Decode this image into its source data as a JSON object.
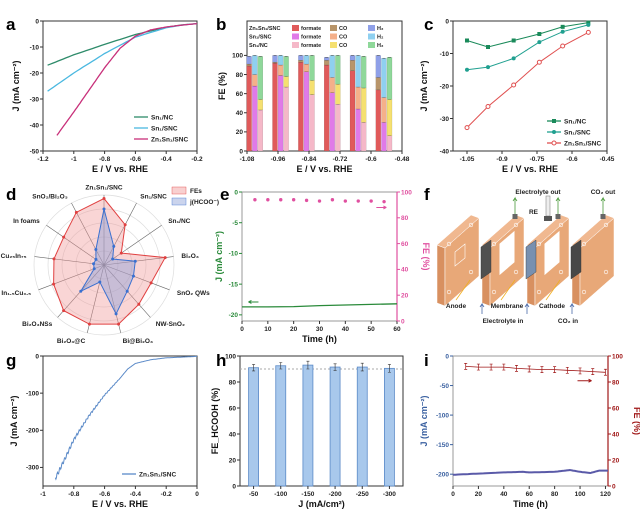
{
  "panel_labels": [
    "a",
    "b",
    "c",
    "d",
    "e",
    "f",
    "g",
    "h",
    "i"
  ],
  "chart_data": [
    {
      "id": "a",
      "type": "line",
      "xlabel": "E / V vs. RHE",
      "ylabel": "J (mA cm⁻²)",
      "xlim": [
        -1.2,
        -0.2
      ],
      "ylim": [
        -50,
        0
      ],
      "xticks": [
        -1.2,
        -1.0,
        -0.8,
        -0.6,
        -0.4,
        -0.2
      ],
      "yticks": [
        -50,
        -40,
        -30,
        -20,
        -10,
        0
      ],
      "legend": "bottom-right",
      "series": [
        {
          "name": "Sn₁/NC",
          "color": "#2e8b6a",
          "x": [
            -1.17,
            -1.0,
            -0.8,
            -0.6,
            -0.4,
            -0.3,
            -0.2
          ],
          "y": [
            -17,
            -13,
            -9,
            -5.2,
            -2.4,
            -1.5,
            -1.0
          ]
        },
        {
          "name": "Sn₁/SNC",
          "color": "#4ab8e0",
          "x": [
            -1.17,
            -1.0,
            -0.8,
            -0.6,
            -0.4,
            -0.3,
            -0.2
          ],
          "y": [
            -27,
            -20,
            -12.5,
            -6.2,
            -2.6,
            -1.6,
            -1.0
          ]
        },
        {
          "name": "Zn₁Sn₁/SNC",
          "color": "#c8307a",
          "x": [
            -1.11,
            -1.0,
            -0.9,
            -0.8,
            -0.7,
            -0.6,
            -0.5,
            -0.4,
            -0.3,
            -0.2
          ],
          "y": [
            -44,
            -35,
            -26.5,
            -18,
            -10.5,
            -5.8,
            -3.4,
            -2.3,
            -1.6,
            -1.0
          ]
        }
      ]
    },
    {
      "id": "b",
      "type": "bar",
      "xlabel": "E / V vs. RHE",
      "ylabel": "FE (%)",
      "xlim": [
        -1.08,
        -0.48
      ],
      "ylim": [
        0,
        136
      ],
      "xticks": [
        -1.08,
        -0.96,
        -0.84,
        -0.72,
        -0.6,
        -0.48
      ],
      "yticks": [
        0,
        20,
        40,
        60,
        80,
        100
      ],
      "potentials": [
        -1.05,
        -0.95,
        -0.85,
        -0.75,
        -0.65,
        -0.55
      ],
      "legend": "top",
      "samples": [
        {
          "name": "Zn₁Sn₁/SNC",
          "colors": {
            "formate": "#e05a5a",
            "CO": "#b8956a",
            "H₂": "#8fa0e8"
          },
          "formate": [
            89,
            92,
            93,
            90,
            84,
            64
          ],
          "CO": [
            2,
            1,
            2,
            5,
            11,
            13
          ],
          "H₂": [
            8,
            7,
            5,
            3,
            5,
            23
          ]
        },
        {
          "name": "Sn₁/SNC",
          "colors": {
            "formate": "#e07ae8",
            "CO": "#f5b08a",
            "H₂": "#8fd0f0"
          },
          "formate": [
            68,
            79,
            83,
            61,
            44,
            30
          ],
          "CO": [
            12,
            11,
            8,
            16,
            23,
            26
          ],
          "H₂": [
            20,
            10,
            9,
            23,
            33,
            41
          ]
        },
        {
          "name": "Sn₁/NC",
          "colors": {
            "formate": "#f5b8c8",
            "CO": "#f5e070",
            "H₂": "#8fd89a"
          },
          "formate": [
            43,
            67,
            59,
            49,
            30,
            16
          ],
          "CO": [
            11,
            11,
            15,
            21,
            36,
            38
          ],
          "H₂": [
            45,
            21,
            26,
            30,
            33,
            44
          ]
        }
      ],
      "product_labels": [
        "formate",
        "CO",
        "H₂"
      ]
    },
    {
      "id": "c",
      "type": "line",
      "xlabel": "E / V vs. RHE",
      "ylabel": "J (mA cm⁻²)",
      "xlim": [
        -1.11,
        -0.45
      ],
      "ylim": [
        -40,
        0
      ],
      "xticks": [
        -1.05,
        -0.9,
        -0.75,
        -0.6,
        -0.45
      ],
      "yticks": [
        -40,
        -30,
        -20,
        -10,
        0
      ],
      "legend": "bottom-right",
      "series": [
        {
          "name": "Sn₁/NC",
          "color": "#1a8a5a",
          "marker": "square",
          "x": [
            -1.05,
            -0.96,
            -0.85,
            -0.74,
            -0.64,
            -0.53
          ],
          "y": [
            -6,
            -8,
            -6,
            -4,
            -1.8,
            -0.5
          ]
        },
        {
          "name": "Sn₁/SNC",
          "color": "#20a090",
          "marker": "circle",
          "x": [
            -1.05,
            -0.96,
            -0.85,
            -0.74,
            -0.64,
            -0.53
          ],
          "y": [
            -15,
            -14.2,
            -11.5,
            -6.5,
            -3.3,
            -1.2
          ]
        },
        {
          "name": "Zn₁Sn₁/SNC",
          "color": "#e05050",
          "marker": "open-circle",
          "x": [
            -1.05,
            -0.96,
            -0.85,
            -0.74,
            -0.64,
            -0.53
          ],
          "y": [
            -32.8,
            -26.3,
            -19.7,
            -12.7,
            -7.7,
            -3.5
          ]
        }
      ]
    },
    {
      "id": "d",
      "type": "radar",
      "axes": [
        "Zn₁Sn₁/SNC",
        "Sn₁/SNC",
        "Sn₁/NC",
        "Bi₂O₃",
        "SnO₂ QWs",
        "NW-SnO₂",
        "Bi@Bi₂O₃",
        "Bi₂O₃@C",
        "Bi₂O₃NSs",
        "In₁.₅Cu₀.₅",
        "Cu₂₅In₇₅",
        "In foams",
        "SnO₂/Bi₂O₃"
      ],
      "legend": "top-right",
      "series": [
        {
          "name": "FEs",
          "color": "#e04040",
          "values": [
            0.95,
            0.65,
            0.3,
            0.88,
            0.72,
            0.75,
            0.87,
            0.87,
            0.87,
            0.77,
            0.72,
            0.7,
            0.85
          ]
        },
        {
          "name": "j(HCOO⁻)",
          "color": "#3a70d0",
          "values": [
            0.8,
            0.3,
            0.15,
            0.45,
            0.45,
            0.5,
            0.72,
            0.25,
            0.5,
            0.15,
            0.15,
            0.14,
            0.25
          ]
        }
      ]
    },
    {
      "id": "e",
      "type": "line+scatter",
      "xlabel": "Time (h)",
      "ylabel": "J (mA cm⁻²)",
      "ylabel_right": "FE (%)",
      "xlim": [
        0,
        60
      ],
      "ylim": [
        -21,
        0
      ],
      "ylim_right": [
        0,
        100
      ],
      "xticks": [
        0,
        10,
        20,
        30,
        40,
        50,
        60
      ],
      "yticks": [
        -20,
        -15,
        -10,
        -5,
        0
      ],
      "yticks_right": [
        0,
        20,
        40,
        60,
        80,
        100
      ],
      "series": [
        {
          "axis": "left",
          "color": "#2a8a3a",
          "x": [
            0,
            10,
            20,
            30,
            40,
            50,
            60
          ],
          "y": [
            -18.7,
            -18.7,
            -18.65,
            -18.5,
            -18.4,
            -18.3,
            -18.2
          ]
        },
        {
          "axis": "right",
          "color": "#e050a0",
          "x": [
            5,
            10,
            15,
            20,
            25,
            30,
            35,
            40,
            45,
            50,
            55
          ],
          "y": [
            94,
            94,
            94,
            94,
            93.5,
            93,
            94,
            93,
            93,
            93,
            92.5
          ]
        }
      ]
    },
    {
      "id": "g",
      "type": "line",
      "xlabel": "E / V vs. RHE",
      "ylabel": "J (mA cm⁻²)",
      "xlim": [
        -1.0,
        0.0
      ],
      "ylim": [
        -350,
        0
      ],
      "xticks": [
        -1.0,
        -0.8,
        -0.6,
        -0.4,
        -0.2,
        0.0
      ],
      "yticks": [
        -300,
        -200,
        -100,
        0
      ],
      "legend": "bottom-right",
      "series": [
        {
          "name": "Zn₁Sn₁/SNC",
          "color": "#5b8ac8",
          "x": [
            -0.92,
            -0.85,
            -0.8,
            -0.7,
            -0.6,
            -0.5,
            -0.45,
            -0.4,
            -0.3,
            -0.2,
            -0.1,
            0.0
          ],
          "y": [
            -330,
            -270,
            -225,
            -160,
            -105,
            -60,
            -35,
            -20,
            -10,
            -5,
            -3,
            -1
          ]
        }
      ]
    },
    {
      "id": "h",
      "type": "bar",
      "xlabel": "J (mA/cm²)",
      "ylabel": "FE_HCOOH (%)",
      "ylim": [
        0,
        100
      ],
      "yticks": [
        0,
        20,
        40,
        60,
        80,
        100
      ],
      "categories": [
        "-50",
        "-100",
        "-150",
        "-200",
        "-250",
        "-300"
      ],
      "values": [
        91,
        92.5,
        93,
        91.5,
        91.5,
        90.5
      ],
      "errors": [
        2.5,
        2.5,
        3,
        2.5,
        3,
        3
      ],
      "reference_line": 90,
      "color": "#a8c8ec"
    },
    {
      "id": "i",
      "type": "line+scatter",
      "xlabel": "Time (h)",
      "ylabel": "J (mA cm⁻²)",
      "ylabel_right": "FE (%)",
      "xlim": [
        0,
        122
      ],
      "ylim": [
        -220,
        0
      ],
      "ylim_right": [
        0,
        100
      ],
      "xticks": [
        0,
        20,
        40,
        60,
        80,
        100,
        120
      ],
      "yticks": [
        -200,
        -150,
        -100,
        -50,
        0
      ],
      "yticks_right": [
        0,
        20,
        40,
        60,
        80,
        100
      ],
      "series": [
        {
          "axis": "left",
          "color": "#5a5aa8",
          "x": [
            0,
            20,
            40,
            55,
            60,
            80,
            92,
            100,
            108,
            115,
            122
          ],
          "y": [
            -201,
            -199,
            -197,
            -196,
            -197,
            -196,
            -193,
            -196,
            -198,
            -194,
            -194
          ]
        },
        {
          "axis": "right",
          "color": "#a01818",
          "x": [
            10,
            20,
            30,
            40,
            50,
            60,
            70,
            80,
            90,
            100,
            110,
            120
          ],
          "y": [
            92,
            91.5,
            91.5,
            91.5,
            90.5,
            90,
            89.5,
            89.5,
            89,
            88.5,
            88,
            87.5
          ]
        }
      ]
    }
  ],
  "diagram_f": {
    "labels": {
      "electrolyte_out": "Electrolyte out",
      "co2_out": "CO₂ out",
      "re": "RE",
      "anode": "Anode",
      "membrane": "Membrane",
      "cathode": "Cathode",
      "electrolyte_in": "Electrolyte in",
      "co2_in": "CO₂ in"
    },
    "colors": {
      "plate": "#e8a878",
      "anode": "#505050",
      "membrane": "#7890b0",
      "cathode": "#484848"
    }
  }
}
